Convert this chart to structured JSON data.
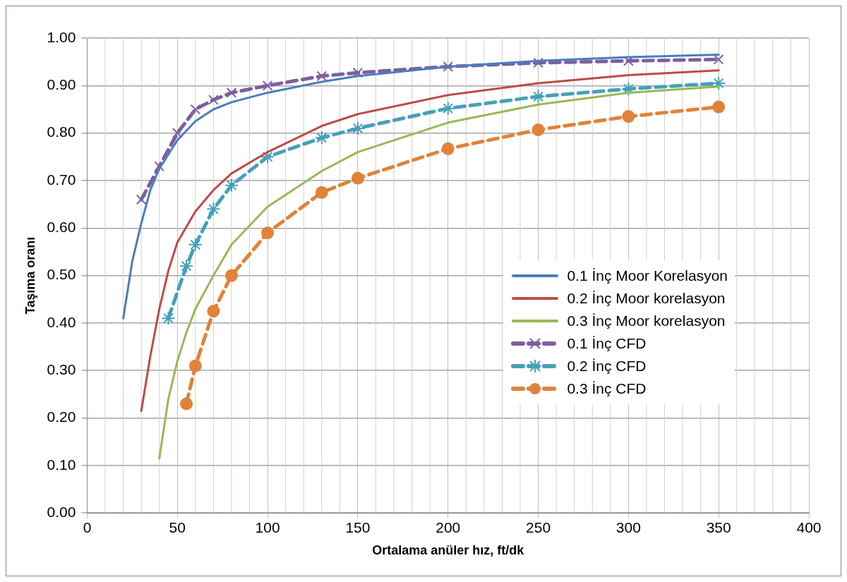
{
  "chart_data": {
    "type": "line",
    "xlabel": "Ortalama anüler hız, ft/dk",
    "ylabel": "Taşıma oranı",
    "xlim": [
      0,
      400
    ],
    "xticks": [
      0,
      50,
      100,
      150,
      200,
      250,
      300,
      350,
      400
    ],
    "ylim": [
      0,
      1
    ],
    "yticks": [
      {
        "value": 0,
        "label": "0.00"
      },
      {
        "value": 0.1,
        "label": "0.10"
      },
      {
        "value": 0.2,
        "label": "0.20"
      },
      {
        "value": 0.3,
        "label": "0.30"
      },
      {
        "value": 0.4,
        "label": "0.40"
      },
      {
        "value": 0.5,
        "label": "0.50"
      },
      {
        "value": 0.6,
        "label": "0.60"
      },
      {
        "value": 0.7,
        "label": "0.70"
      },
      {
        "value": 0.8,
        "label": "0.80"
      },
      {
        "value": 0.9,
        "label": "0.90"
      },
      {
        "value": 1,
        "label": "1.00"
      }
    ],
    "grid": true,
    "legend": "right",
    "series": [
      {
        "name": "0.1 İnç Moor Korelasyon",
        "color": "#4a7ebb",
        "marker": "none",
        "line_style": "solid",
        "x": [
          20,
          25,
          30,
          35,
          40,
          50,
          60,
          70,
          80,
          100,
          130,
          150,
          200,
          250,
          300,
          350
        ],
        "values": [
          0.41,
          0.53,
          0.61,
          0.68,
          0.725,
          0.785,
          0.825,
          0.85,
          0.865,
          0.885,
          0.908,
          0.92,
          0.94,
          0.952,
          0.96,
          0.965
        ]
      },
      {
        "name": "0.2 İnç Moor korelasyon",
        "color": "#be4b48",
        "marker": "none",
        "line_style": "solid",
        "x": [
          30,
          35,
          40,
          45,
          50,
          60,
          70,
          80,
          100,
          130,
          150,
          200,
          250,
          300,
          350
        ],
        "values": [
          0.215,
          0.33,
          0.43,
          0.51,
          0.57,
          0.635,
          0.68,
          0.715,
          0.76,
          0.815,
          0.84,
          0.88,
          0.905,
          0.922,
          0.932
        ]
      },
      {
        "name": "0.3 İnç Moor korelasyon",
        "color": "#98b954",
        "marker": "none",
        "line_style": "solid",
        "x": [
          40,
          45,
          50,
          55,
          60,
          70,
          80,
          100,
          130,
          150,
          200,
          250,
          300,
          350
        ],
        "values": [
          0.115,
          0.24,
          0.32,
          0.38,
          0.43,
          0.5,
          0.565,
          0.645,
          0.72,
          0.76,
          0.822,
          0.86,
          0.885,
          0.898
        ]
      },
      {
        "name": "0.1 İnç CFD",
        "color": "#7d5fa0",
        "marker": "cross",
        "line_style": "dashed",
        "x": [
          30,
          40,
          50,
          60,
          70,
          80,
          100,
          130,
          150,
          200,
          250,
          300,
          350
        ],
        "values": [
          0.66,
          0.73,
          0.8,
          0.85,
          0.87,
          0.885,
          0.9,
          0.92,
          0.927,
          0.94,
          0.948,
          0.952,
          0.955
        ]
      },
      {
        "name": "0.2 İnç CFD",
        "color": "#46a0b9",
        "marker": "cross",
        "line_style": "dashed",
        "x": [
          45,
          55,
          60,
          70,
          80,
          100,
          130,
          150,
          200,
          250,
          300,
          350
        ],
        "values": [
          0.41,
          0.52,
          0.565,
          0.64,
          0.69,
          0.75,
          0.79,
          0.81,
          0.852,
          0.877,
          0.893,
          0.905
        ]
      },
      {
        "name": "0.3 İnç CFD",
        "color": "#e0823a",
        "marker": "circle",
        "line_style": "dashed",
        "x": [
          55,
          60,
          70,
          80,
          100,
          130,
          150,
          200,
          250,
          300,
          350
        ],
        "values": [
          0.23,
          0.31,
          0.425,
          0.5,
          0.59,
          0.675,
          0.705,
          0.767,
          0.807,
          0.835,
          0.855
        ]
      }
    ]
  }
}
